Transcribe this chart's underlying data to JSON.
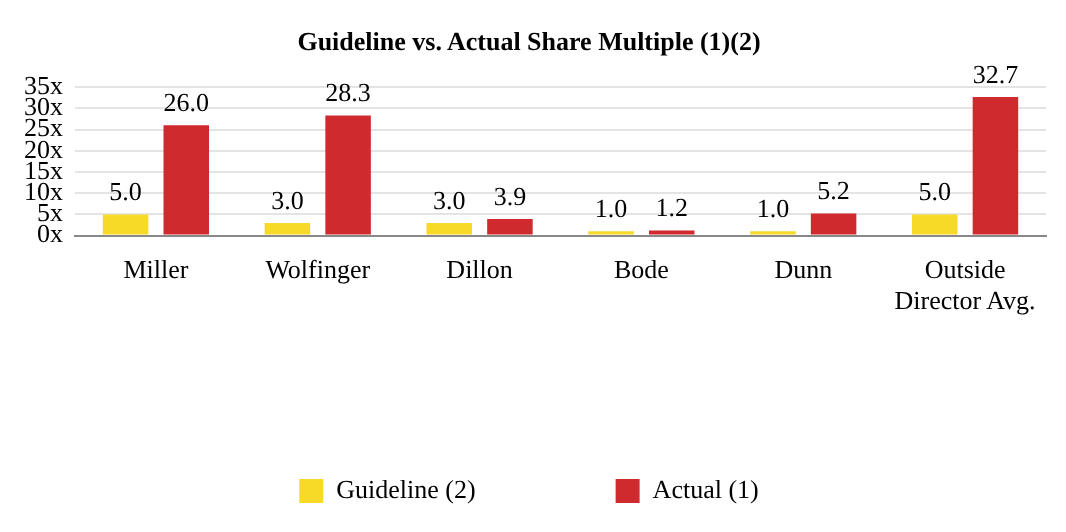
{
  "chart_data": {
    "type": "bar",
    "title": "Guideline vs. Actual Share Multiple (1)(2)",
    "categories": [
      "Miller",
      "Wolfinger",
      "Dillon",
      "Bode",
      "Dunn",
      "Outside Director Avg."
    ],
    "series": [
      {
        "name": "Guideline (2)",
        "color": "#f7d928",
        "values": [
          5.0,
          3.0,
          3.0,
          1.0,
          1.0,
          5.0
        ],
        "value_labels": [
          "5.0",
          "3.0",
          "3.0",
          "1.0",
          "1.0",
          "5.0"
        ]
      },
      {
        "name": "Actual (1)",
        "color": "#cf2a2e",
        "values": [
          26.0,
          28.3,
          3.9,
          1.2,
          5.2,
          32.7
        ],
        "value_labels": [
          "26.0",
          "28.3",
          "3.9",
          "1.2",
          "5.2",
          "32.7"
        ]
      }
    ],
    "ylim": [
      0,
      35
    ],
    "yticks": [
      {
        "value": 0,
        "label": "0x"
      },
      {
        "value": 5,
        "label": "5x"
      },
      {
        "value": 10,
        "label": "10x"
      },
      {
        "value": 15,
        "label": "15x"
      },
      {
        "value": 20,
        "label": "20x"
      },
      {
        "value": 25,
        "label": "25x"
      },
      {
        "value": 30,
        "label": "30x"
      },
      {
        "value": 35,
        "label": "35x"
      }
    ],
    "grid": "y",
    "legend": "bottom"
  }
}
